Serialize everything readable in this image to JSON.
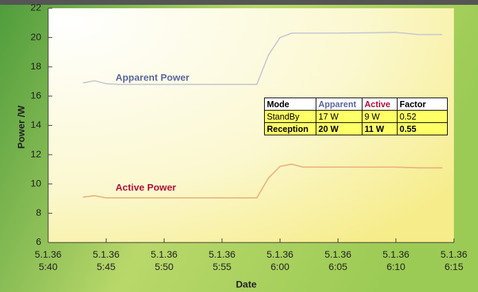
{
  "chart_data": {
    "type": "line",
    "x": [
      "5.1.36 5:43",
      "5.1.36 5:44",
      "5.1.36 5:45",
      "5.1.36 5:46",
      "5.1.36 5:50",
      "5.1.36 5:55",
      "5.1.36 5:58",
      "5.1.36 5:59",
      "5.1.36 6:00",
      "5.1.36 6:01",
      "5.1.36 6:02",
      "5.1.36 6:05",
      "5.1.36 6:10",
      "5.1.36 6:12",
      "5.1.36 6:14"
    ],
    "series": [
      {
        "name": "Apparent Power",
        "color": "#c9c9d2",
        "label_color": "#5a67a0",
        "values": [
          16.9,
          17.05,
          16.85,
          16.8,
          16.8,
          16.8,
          16.8,
          18.8,
          20.0,
          20.3,
          20.3,
          20.3,
          20.35,
          20.2,
          20.2
        ]
      },
      {
        "name": "Active Power",
        "color": "#e9b27e",
        "label_color": "#b3103c",
        "values": [
          9.1,
          9.2,
          9.05,
          9.05,
          9.05,
          9.05,
          9.05,
          10.4,
          11.2,
          11.35,
          11.15,
          11.15,
          11.15,
          11.1,
          11.1
        ]
      }
    ],
    "xlabel": "Date",
    "ylabel": "Power /W",
    "xlim": [
      "5.1.36 5:40",
      "5.1.36 6:15"
    ],
    "xticks": [
      "5.1.36 5:40",
      "5.1.36 5:45",
      "5.1.36 5:50",
      "5.1.36 5:55",
      "5.1.36 6:00",
      "5.1.36 6:05",
      "5.1.36 6:10",
      "5.1.36 6:15"
    ],
    "ylim": [
      6,
      22
    ],
    "yticks": [
      6,
      8,
      10,
      12,
      14,
      16,
      18,
      20,
      22
    ]
  },
  "table": {
    "columns": [
      "Mode",
      "Apparent",
      "Active",
      "Factor"
    ],
    "rows": [
      [
        "StandBy",
        "17 W",
        "9 W",
        "0.52"
      ],
      [
        "Reception",
        "20 W",
        "11 W",
        "0.55"
      ]
    ]
  }
}
